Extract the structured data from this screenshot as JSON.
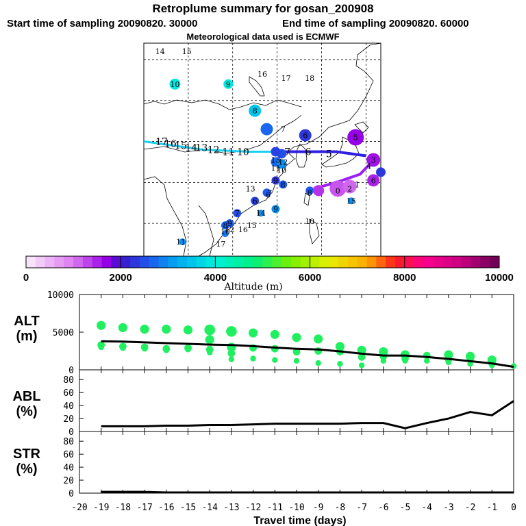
{
  "header": {
    "title": "Retroplume summary for gosan_200908",
    "start": "Start time of sampling 20090820. 30000",
    "end": "End time of sampling 20090820. 60000",
    "met": "Meteorological data used is ECMWF"
  },
  "colorbar": {
    "label": "Altitude (m)",
    "ticks": [
      "0",
      "2000",
      "4000",
      "6000",
      "8000",
      "10000"
    ],
    "range": [
      0,
      10000
    ]
  },
  "map_labels": [
    {
      "text": "14",
      "lon": 80.5,
      "lat": 72.0
    },
    {
      "text": "15",
      "lon": 89.5,
      "lat": 72.0
    },
    {
      "text": "10",
      "lon": 85.5,
      "lat": 64.0
    },
    {
      "text": "9",
      "lon": 103.5,
      "lat": 64.0
    },
    {
      "text": "16",
      "lon": 115.0,
      "lat": 66.5
    },
    {
      "text": "17",
      "lon": 123.0,
      "lat": 65.5
    },
    {
      "text": "18",
      "lon": 131.0,
      "lat": 65.5
    },
    {
      "text": "8",
      "lon": 112.5,
      "lat": 57.5
    },
    {
      "text": "7",
      "lon": 122.0,
      "lat": 53.0
    },
    {
      "text": "6",
      "lon": 129.5,
      "lat": 51.5
    },
    {
      "text": "5",
      "lon": 146.5,
      "lat": 51.0
    },
    {
      "text": "3",
      "lon": 152.5,
      "lat": 45.5
    },
    {
      "text": "4",
      "lon": 151.0,
      "lat": 44.0
    },
    {
      "text": "6",
      "lon": 152.5,
      "lat": 40.5
    },
    {
      "text": "1",
      "lon": 147.0,
      "lat": 39.5
    },
    {
      "text": "2",
      "lon": 144.5,
      "lat": 38.5
    },
    {
      "text": "0",
      "lon": 140.5,
      "lat": 38.0
    },
    {
      "text": "13",
      "lon": 119.5,
      "lat": 45.5
    },
    {
      "text": "12",
      "lon": 122.0,
      "lat": 45.0
    },
    {
      "text": "11",
      "lon": 119.5,
      "lat": 43.5
    },
    {
      "text": "10",
      "lon": 121.5,
      "lat": 43.0
    },
    {
      "text": "9",
      "lon": 119.5,
      "lat": 40.5
    },
    {
      "text": "8",
      "lon": 122.0,
      "lat": 39.5
    },
    {
      "text": "7",
      "lon": 117.5,
      "lat": 37.5
    },
    {
      "text": "13",
      "lon": 111.0,
      "lat": 38.5
    },
    {
      "text": "6",
      "lon": 117.0,
      "lat": 37.0
    },
    {
      "text": "8",
      "lon": 131.0,
      "lat": 37.5
    },
    {
      "text": "15",
      "lon": 145.0,
      "lat": 35.5
    },
    {
      "text": "6",
      "lon": 112.5,
      "lat": 35.5
    },
    {
      "text": "9",
      "lon": 119.5,
      "lat": 33.5
    },
    {
      "text": "7",
      "lon": 106.5,
      "lat": 32.5
    },
    {
      "text": "14",
      "lon": 114.5,
      "lat": 32.5
    },
    {
      "text": "10",
      "lon": 131.0,
      "lat": 30.5
    },
    {
      "text": "8",
      "lon": 102.5,
      "lat": 29.5
    },
    {
      "text": "9",
      "lon": 104.0,
      "lat": 30.0
    },
    {
      "text": "15",
      "lon": 111.5,
      "lat": 29.5
    },
    {
      "text": "16",
      "lon": 108.5,
      "lat": 28.5
    },
    {
      "text": "10",
      "lon": 102.5,
      "lat": 28.0
    },
    {
      "text": "11",
      "lon": 87.5,
      "lat": 25.5
    },
    {
      "text": "17",
      "lon": 101.0,
      "lat": 25.0
    },
    {
      "text": "12",
      "lon": 104.0,
      "lat": 28.5
    }
  ],
  "map_track_labels": [
    {
      "text": "17",
      "lon": 81.0,
      "lat": 50.0
    },
    {
      "text": "16",
      "lon": 84.0,
      "lat": 49.5
    },
    {
      "text": "15",
      "lon": 87.5,
      "lat": 49.0
    },
    {
      "text": "14",
      "lon": 91.0,
      "lat": 48.5
    },
    {
      "text": "13",
      "lon": 94.5,
      "lat": 48.5
    },
    {
      "text": "12",
      "lon": 98.5,
      "lat": 48.0
    },
    {
      "text": "11",
      "lon": 103.5,
      "lat": 47.5
    },
    {
      "text": "10",
      "lon": 108.5,
      "lat": 47.5
    },
    {
      "text": "7",
      "lon": 123.5,
      "lat": 47.5
    },
    {
      "text": "6",
      "lon": 130.5,
      "lat": 47.5
    },
    {
      "text": "5",
      "lon": 137.5,
      "lat": 47.0
    }
  ],
  "chart_data": [
    {
      "type": "scatter+line",
      "title": "ALT (m)",
      "ylabel": "ALT\n(m)",
      "ylim": [
        0,
        10000
      ],
      "yticks": [
        0,
        5000,
        10000
      ],
      "x": [
        -19,
        -18,
        -17,
        -16,
        -15,
        -14,
        -13,
        -12,
        -11,
        -10,
        -9,
        -8,
        -7,
        -6,
        -5,
        -4,
        -3,
        -2,
        -1,
        0
      ],
      "mean_line": [
        3800,
        3750,
        3650,
        3550,
        3450,
        3350,
        3300,
        3150,
        2950,
        2800,
        2700,
        2450,
        2150,
        1900,
        1900,
        1700,
        1450,
        1150,
        850,
        400
      ],
      "clusters": [
        {
          "x": -19,
          "values": [
            5900,
            3300,
            3000
          ]
        },
        {
          "x": -18,
          "values": [
            5600,
            3100,
            2900
          ]
        },
        {
          "x": -17,
          "values": [
            5400,
            3000,
            2800
          ]
        },
        {
          "x": -16,
          "values": [
            5400,
            2800,
            2600
          ]
        },
        {
          "x": -15,
          "values": [
            5300,
            2900,
            2700
          ]
        },
        {
          "x": -14,
          "values": [
            5300,
            4000,
            2700,
            2300
          ]
        },
        {
          "x": -13,
          "values": [
            5100,
            3000,
            2200,
            1400
          ]
        },
        {
          "x": -12,
          "values": [
            4900,
            2900,
            1500
          ]
        },
        {
          "x": -11,
          "values": [
            4700,
            2800,
            1300
          ]
        },
        {
          "x": -10,
          "values": [
            4300,
            2400,
            1200
          ]
        },
        {
          "x": -9,
          "values": [
            4100,
            2500,
            900
          ]
        },
        {
          "x": -8,
          "values": [
            3100,
            2400,
            800
          ]
        },
        {
          "x": -7,
          "values": [
            2600,
            1700,
            600
          ]
        },
        {
          "x": -6,
          "values": [
            2400,
            1800,
            1200
          ]
        },
        {
          "x": -5,
          "values": [
            2000,
            1500,
            1200
          ]
        },
        {
          "x": -4,
          "values": [
            1900,
            1200
          ]
        },
        {
          "x": -3,
          "values": [
            2000,
            1400,
            1000
          ]
        },
        {
          "x": -2,
          "values": [
            1800,
            1400,
            800
          ]
        },
        {
          "x": -1,
          "values": [
            1300,
            900,
            600
          ]
        },
        {
          "x": 0,
          "values": [
            500
          ]
        }
      ]
    },
    {
      "type": "line",
      "title": "ABL (%)",
      "ylabel": "ABL\n(%)",
      "ylim": [
        0,
        95
      ],
      "yticks": [
        0,
        20,
        40,
        60,
        80
      ],
      "x": [
        -19,
        -18,
        -17,
        -16,
        -15,
        -14,
        -13,
        -12,
        -11,
        -10,
        -9,
        -8,
        -7,
        -6,
        -5,
        -4,
        -3,
        -2,
        -1,
        0
      ],
      "values": [
        8,
        8,
        8,
        9,
        9,
        10,
        10,
        11,
        12,
        12,
        12,
        12,
        13,
        13,
        5,
        13,
        20,
        30,
        25,
        47
      ]
    },
    {
      "type": "line",
      "title": "STR (%)",
      "ylabel": "STR\n(%)",
      "ylim": [
        0,
        95
      ],
      "yticks": [
        0,
        20,
        40,
        60,
        80
      ],
      "x": [
        -19,
        -18,
        -17,
        -16,
        -15,
        -14,
        -13,
        -12,
        -11,
        -10,
        -9,
        -8,
        -7,
        -6,
        -5,
        -4,
        -3,
        -2,
        -1,
        0
      ],
      "values": [
        2,
        2,
        2,
        1,
        1,
        1,
        1,
        1,
        1,
        1,
        1,
        1,
        1,
        1,
        1,
        1,
        1,
        1,
        1,
        1
      ]
    }
  ],
  "x_axis": {
    "label": "Travel time (days)",
    "ticks": [
      "-20",
      "-19",
      "-18",
      "-17",
      "-16",
      "-15",
      "-14",
      "-13",
      "-12",
      "-11",
      "-10",
      "-9",
      "-8",
      "-7",
      "-6",
      "-5",
      "-4",
      "-3",
      "-2",
      "-1",
      "0"
    ]
  }
}
